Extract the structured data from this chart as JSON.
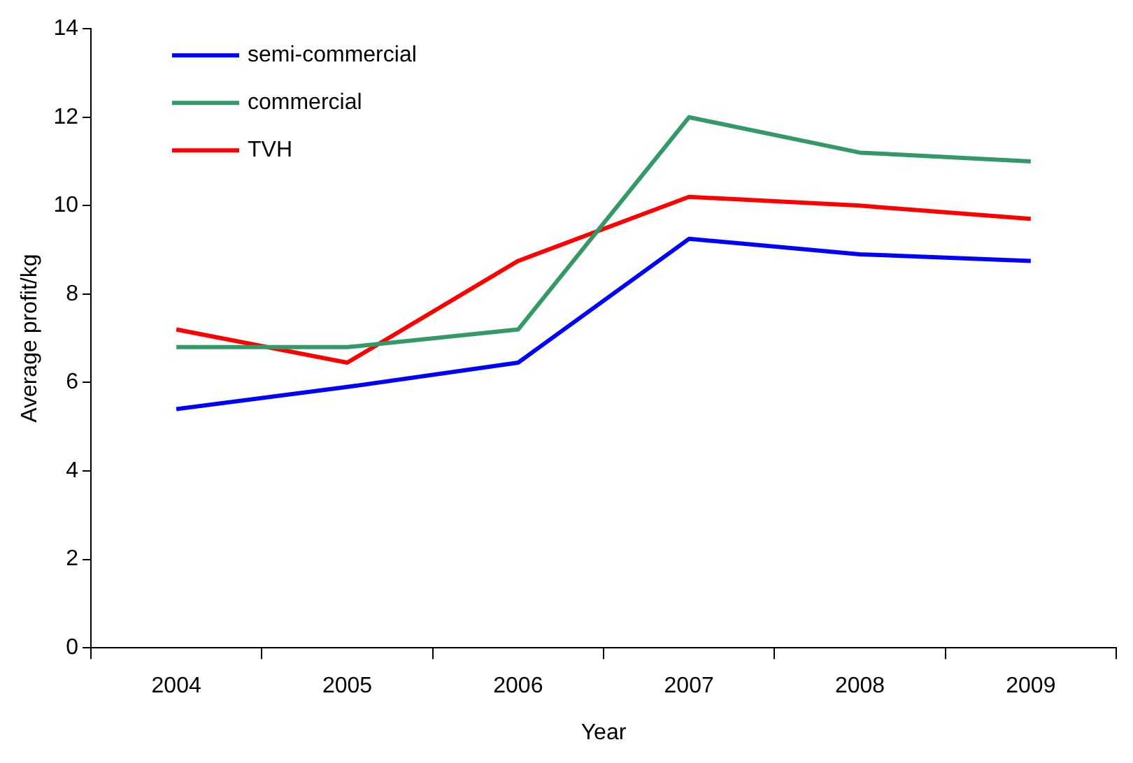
{
  "chart_data": {
    "type": "line",
    "xlabel": "Year",
    "ylabel": "Average profit/kg",
    "categories": [
      "2004",
      "2005",
      "2006",
      "2007",
      "2008",
      "2009"
    ],
    "series": [
      {
        "name": "semi-commercial",
        "color": "#0000ff",
        "values": [
          5.4,
          5.9,
          6.45,
          9.25,
          8.9,
          8.75
        ]
      },
      {
        "name": "commercial",
        "color": "#339966",
        "values": [
          6.8,
          6.8,
          7.2,
          12.0,
          11.2,
          11.0
        ]
      },
      {
        "name": "TVH",
        "color": "#ff0000",
        "values": [
          7.2,
          6.45,
          8.75,
          10.2,
          10.0,
          9.7
        ]
      }
    ],
    "ylim": [
      0,
      14
    ],
    "yticks": [
      0,
      2,
      4,
      6,
      8,
      10,
      12,
      14
    ],
    "grid": false,
    "legend": "top left",
    "marker": "none",
    "line_style": "solid"
  }
}
